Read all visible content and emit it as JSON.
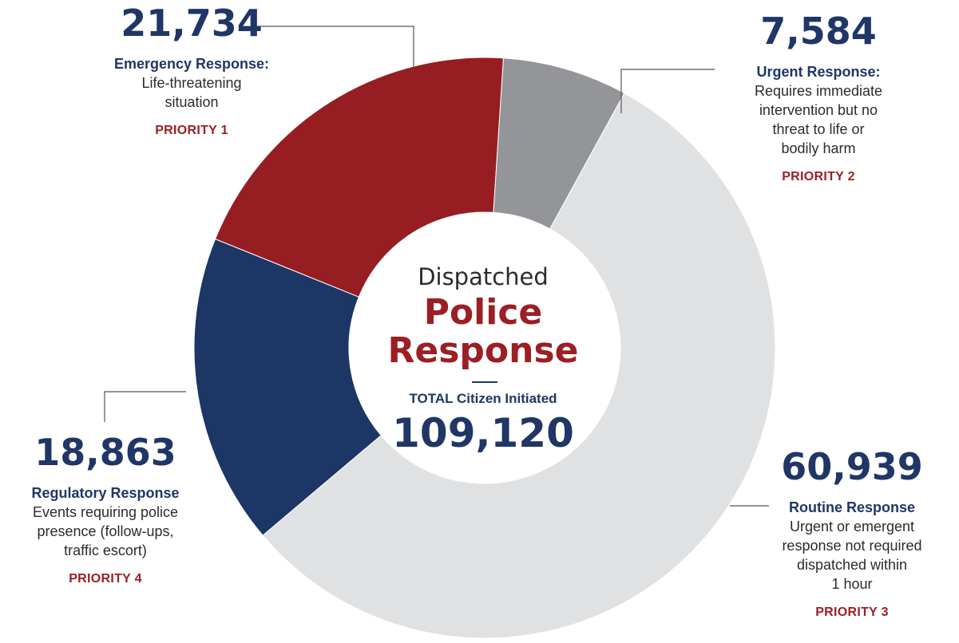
{
  "chart_data": {
    "type": "pie",
    "center": {
      "line1": "Dispatched",
      "line2": "Police",
      "line3": "Response",
      "total_label": "TOTAL Citizen Initiated",
      "total_value": "109,120"
    },
    "slices": [
      {
        "id": "emergency",
        "value": 21734,
        "value_label": "21,734",
        "title": "Emergency Response:",
        "description": [
          "Life-threatening",
          "situation"
        ],
        "priority": "PRIORITY 1",
        "color": "#961e23"
      },
      {
        "id": "urgent",
        "value": 7584,
        "value_label": "7,584",
        "title": "Urgent Response:",
        "description": [
          "Requires immediate",
          "intervention but no",
          "threat to life or",
          "bodily harm"
        ],
        "priority": "PRIORITY 2",
        "color": "#939598"
      },
      {
        "id": "routine",
        "value": 60939,
        "value_label": "60,939",
        "title": "Routine Response",
        "description": [
          "Urgent or emergent",
          "response not required",
          "dispatched within",
          "1 hour"
        ],
        "priority": "PRIORITY 3",
        "color": "#e0e1e3"
      },
      {
        "id": "regulatory",
        "value": 18863,
        "value_label": "18,863",
        "title": "Regulatory Response",
        "description": [
          "Events requiring police",
          "presence (follow-ups,",
          "traffic escort)"
        ],
        "priority": "PRIORITY 4",
        "color": "#1c3665"
      }
    ]
  }
}
